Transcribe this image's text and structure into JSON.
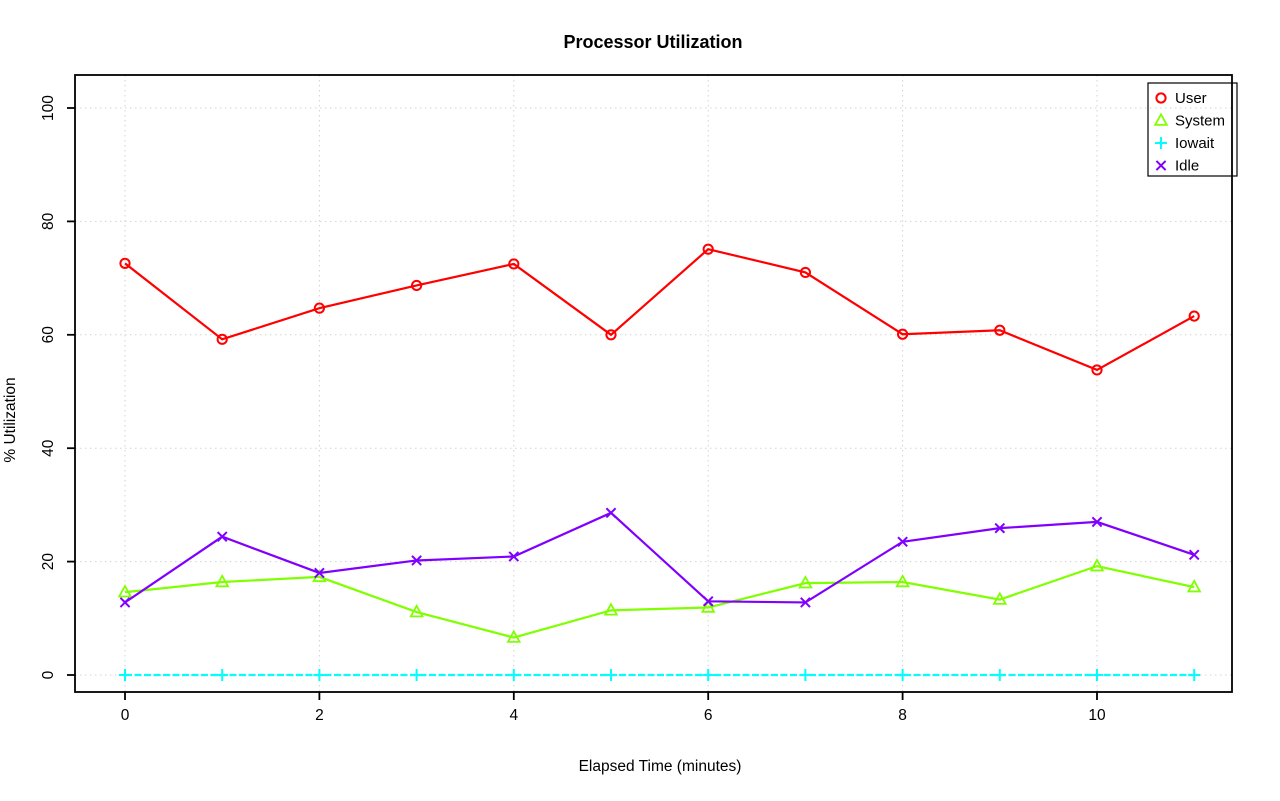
{
  "page": {
    "background": "#ffffff",
    "axis_color": "#000000",
    "grid_color": "#d3d3d3",
    "grid_style": "dotted"
  },
  "chart_data": {
    "type": "line",
    "title": "Processor Utilization",
    "xlabel": "Elapsed Time (minutes)",
    "ylabel": "% Utilization",
    "x": [
      0,
      1,
      2,
      3,
      4,
      5,
      6,
      7,
      8,
      9,
      10,
      11
    ],
    "xlim": [
      0,
      11
    ],
    "ylim": [
      0,
      100
    ],
    "x_ticks": [
      0,
      2,
      4,
      6,
      8,
      10
    ],
    "y_ticks": [
      0,
      20,
      40,
      60,
      80,
      100
    ],
    "grid": "on",
    "legend_position": "top-right",
    "series": [
      {
        "name": "User",
        "color": "#FF0000",
        "marker": "circle",
        "line": "solid",
        "values": [
          72.6,
          59.2,
          64.7,
          68.7,
          72.5,
          60.0,
          75.1,
          71.0,
          60.1,
          60.8,
          53.8,
          63.3
        ]
      },
      {
        "name": "System",
        "color": "#80FF00",
        "marker": "triangle",
        "line": "solid",
        "values": [
          14.6,
          16.4,
          17.3,
          11.1,
          6.6,
          11.4,
          11.9,
          16.2,
          16.4,
          13.3,
          19.2,
          15.5
        ]
      },
      {
        "name": "Iowait",
        "color": "#00FFFF",
        "marker": "plus",
        "line": "dashed",
        "values": [
          0,
          0,
          0,
          0,
          0,
          0,
          0,
          0,
          0,
          0,
          0,
          0
        ]
      },
      {
        "name": "Idle",
        "color": "#8000FF",
        "marker": "x",
        "line": "solid",
        "values": [
          12.8,
          24.4,
          18.0,
          20.2,
          20.9,
          28.6,
          13.0,
          12.8,
          23.5,
          25.9,
          27.0,
          21.2
        ]
      }
    ]
  }
}
